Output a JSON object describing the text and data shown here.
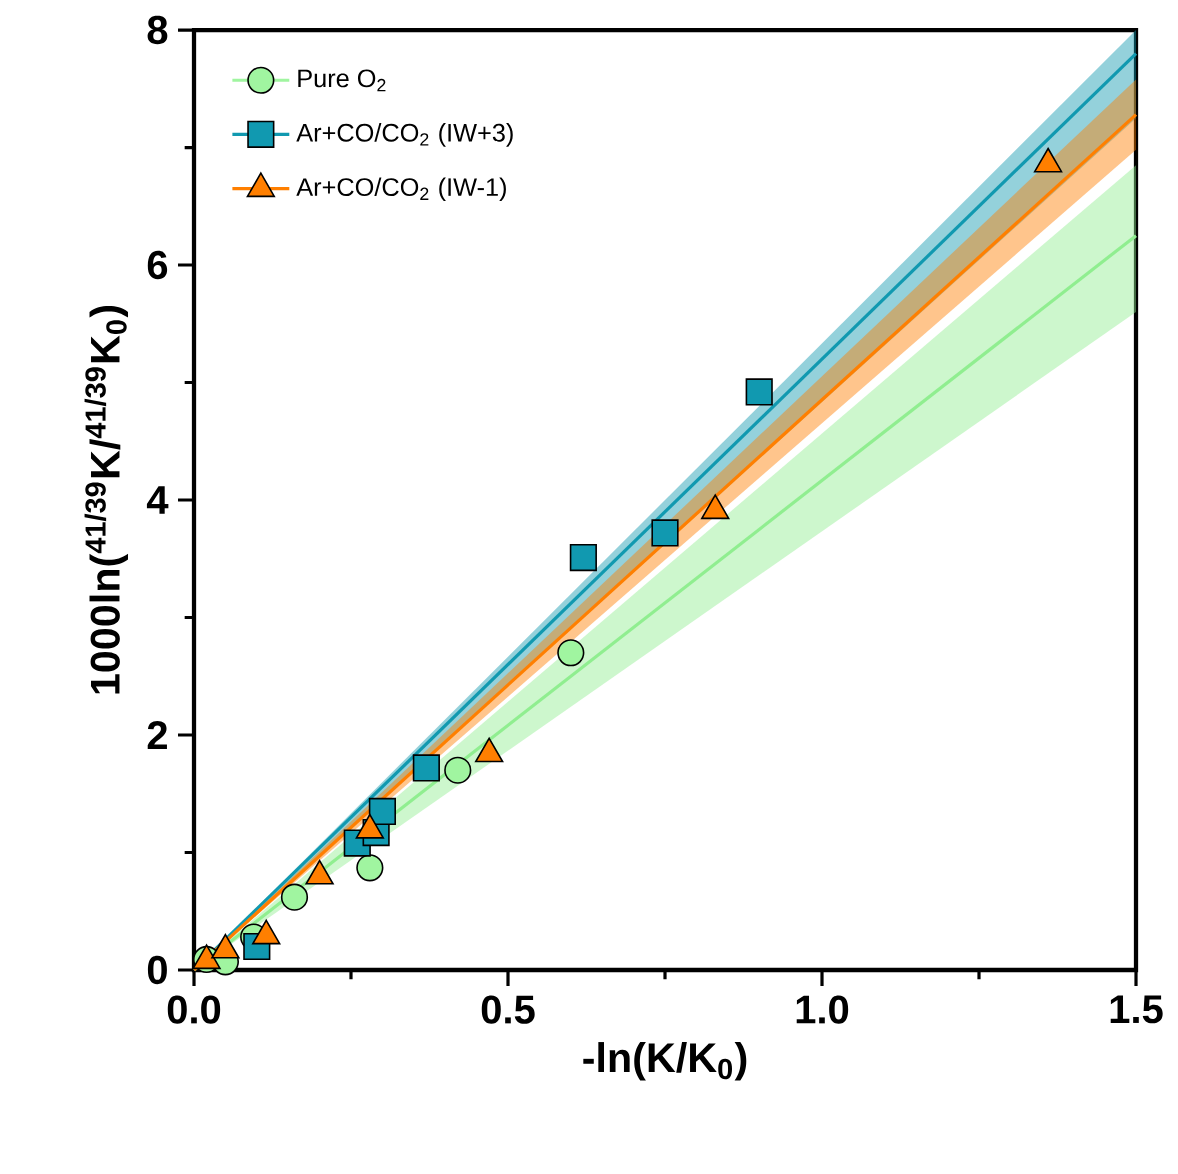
{
  "chart_data": {
    "type": "scatter",
    "xlabel": "-ln(K/K$_{0}$)",
    "ylabel": "1000ln($^{41/39}$K/$^{41/39}$K$_{0}$)",
    "xlim": [
      0,
      1.5
    ],
    "ylim": [
      0,
      8
    ],
    "xticks": [
      {
        "value": 0,
        "label": "0.0"
      },
      0.5,
      {
        "value": 1,
        "label": "1.0"
      },
      1.5
    ],
    "yticks": [
      0,
      2,
      4,
      6,
      8
    ],
    "legend": "top left",
    "grid": false,
    "series": [
      {
        "type": "line",
        "color": "#90ee90",
        "x": [
          0,
          1.5
        ],
        "values": [
          0,
          6.25
        ],
        "lower": [
          0,
          5.6
        ],
        "upper": [
          0,
          6.85
        ]
      },
      {
        "type": "line",
        "color": "#1199b0",
        "x": [
          0,
          1.5
        ],
        "values": [
          0,
          7.8
        ],
        "lower": [
          0,
          7.25
        ],
        "upper": [
          0,
          8.0
        ]
      },
      {
        "type": "line",
        "color": "#ff7f00",
        "x": [
          0,
          1.5
        ],
        "values": [
          0,
          7.28
        ],
        "lower": [
          0,
          6.98
        ],
        "upper": [
          0,
          7.58
        ]
      },
      {
        "name": "Pure O$_{2}$",
        "color": "#a0f5a0",
        "marker": "circle",
        "x": [
          0.02,
          0.05,
          0.095,
          0.16,
          0.28,
          0.42,
          0.6
        ],
        "values": [
          0.09,
          0.07,
          0.28,
          0.62,
          0.87,
          1.7,
          2.7
        ]
      },
      {
        "name": "Ar+CO/CO$_{2}$ (IW+3)",
        "color": "#1199b0",
        "marker": "square",
        "x": [
          0.1,
          0.26,
          0.29,
          0.3,
          0.37,
          0.62,
          0.75,
          0.9
        ],
        "values": [
          0.2,
          1.08,
          1.17,
          1.35,
          1.72,
          3.51,
          3.72,
          4.92
        ]
      },
      {
        "name": "Ar+CO/CO$_{2}$ (IW-1)",
        "color": "#ff7f00",
        "marker": "triangle",
        "x": [
          0.02,
          0.05,
          0.115,
          0.2,
          0.28,
          0.47,
          0.83,
          1.36
        ],
        "values": [
          0.08,
          0.17,
          0.29,
          0.8,
          1.19,
          1.84,
          3.91,
          6.86
        ]
      }
    ]
  }
}
